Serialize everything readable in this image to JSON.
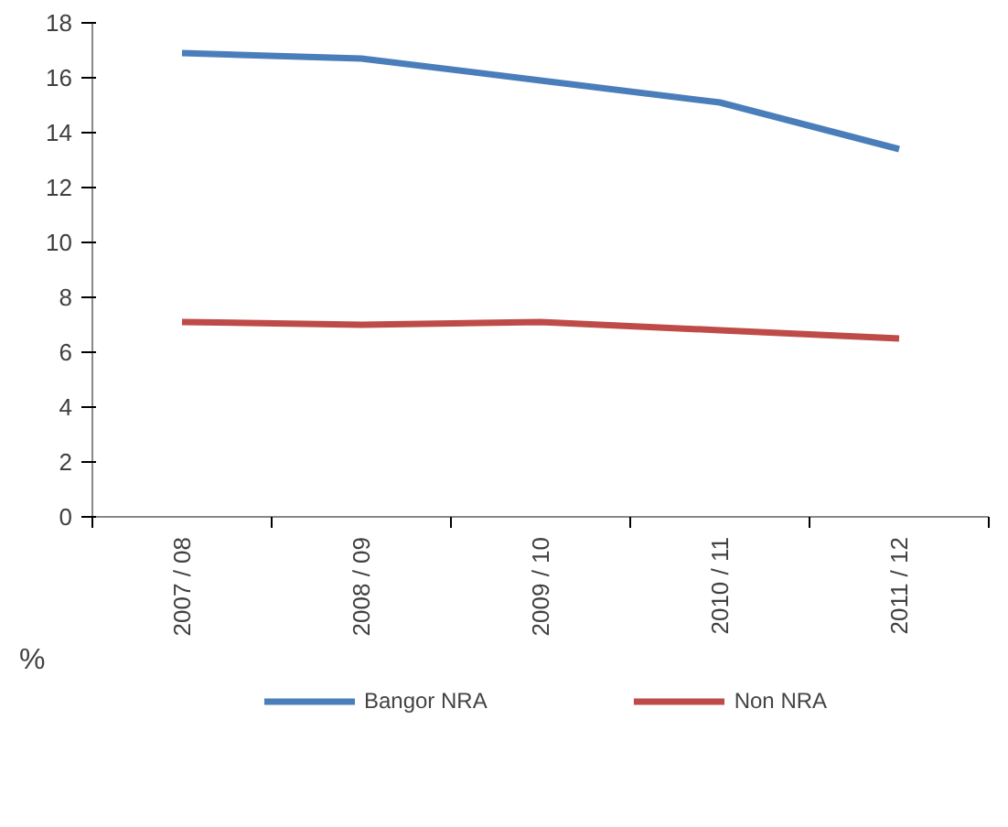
{
  "chart_data": {
    "type": "line",
    "ylabel": "%",
    "categories": [
      "2007 / 08",
      "2008 / 09",
      "2009 / 10",
      "2010 / 11",
      "2011 / 12"
    ],
    "series": [
      {
        "name": "Bangor NRA",
        "color": "#4a7ebb",
        "values": [
          16.9,
          16.7,
          15.9,
          15.1,
          13.4
        ]
      },
      {
        "name": "Non NRA",
        "color": "#be4b48",
        "values": [
          7.1,
          7.0,
          7.1,
          6.8,
          6.5
        ]
      }
    ],
    "ylim": [
      0,
      18
    ],
    "yticks": [
      0,
      2,
      4,
      6,
      8,
      10,
      12,
      14,
      16,
      18
    ],
    "grid": false,
    "legend": "bottom",
    "marker": "none",
    "line_style": "solid"
  }
}
